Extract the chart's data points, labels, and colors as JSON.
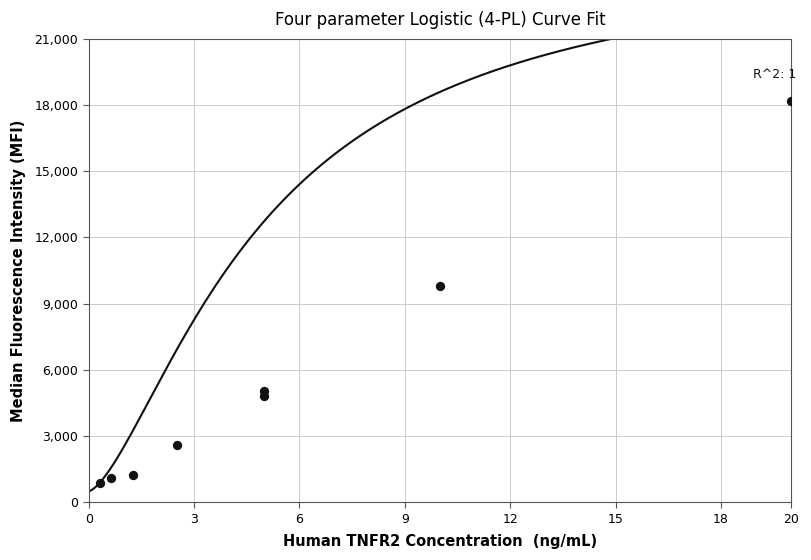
{
  "title": "Four parameter Logistic (4-PL) Curve Fit",
  "xlabel": "Human TNFR2 Concentration  (ng/mL)",
  "ylabel": "Median Fluorescence Intensity (MFI)",
  "x_data": [
    0.3125,
    0.625,
    1.25,
    2.5,
    5.0,
    5.0,
    10.0,
    20.0
  ],
  "y_data": [
    880,
    1100,
    1220,
    2600,
    4800,
    5050,
    9800,
    18200
  ],
  "xlim": [
    0,
    20
  ],
  "ylim": [
    0,
    21000
  ],
  "xticks": [
    0,
    3,
    6,
    9,
    12,
    15,
    18,
    20
  ],
  "yticks": [
    0,
    3000,
    6000,
    9000,
    12000,
    15000,
    18000,
    21000
  ],
  "r_squared_label": "R^2: 1",
  "r_squared_x": 18.9,
  "r_squared_y": 19400,
  "background_color": "#ffffff",
  "grid_color": "#cccccc",
  "line_color": "#111111",
  "marker_color": "#111111",
  "spine_color": "#555555",
  "title_fontsize": 12,
  "axis_label_fontsize": 10.5,
  "tick_fontsize": 9
}
